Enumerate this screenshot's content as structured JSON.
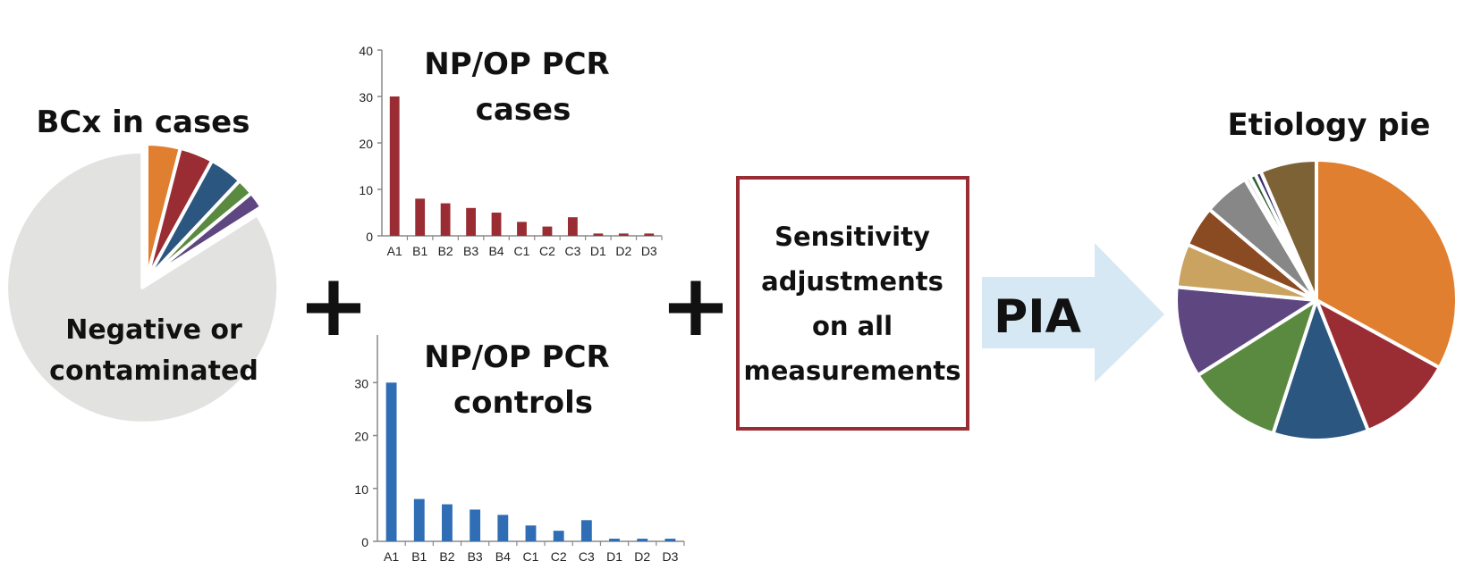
{
  "bcx_pie": {
    "title": "BCx in cases",
    "negative_label_line1": "Negative or",
    "negative_label_line2": "contaminated",
    "slices": [
      {
        "value": 4.0,
        "color": "#E07F2F"
      },
      {
        "value": 4.0,
        "color": "#9A2D34"
      },
      {
        "value": 4.0,
        "color": "#2A5680"
      },
      {
        "value": 2.0,
        "color": "#5A8A40"
      },
      {
        "value": 2.0,
        "color": "#5E4680"
      },
      {
        "value": 84.0,
        "color": "#E2E2E0",
        "exploded": true
      }
    ]
  },
  "plus_sign": "+",
  "cases_chart": {
    "title_line1": "NP/OP PCR",
    "title_line2": "cases",
    "color": "#9A2D34"
  },
  "controls_chart": {
    "title_line1": "NP/OP PCR",
    "title_line2": "controls",
    "color": "#2F6DB5"
  },
  "box": {
    "lines": [
      "Sensitivity",
      "adjustments",
      "on all",
      "measurements"
    ],
    "border_color": "#9A2D34"
  },
  "arrow": {
    "label": "PIA",
    "color": "#D6E8F4"
  },
  "etiology_pie": {
    "title": "Etiology pie",
    "slices": [
      {
        "value": 33.0,
        "color": "#E07F2F"
      },
      {
        "value": 11.0,
        "color": "#9A2D34"
      },
      {
        "value": 11.0,
        "color": "#2A5680"
      },
      {
        "value": 11.0,
        "color": "#5A8A40"
      },
      {
        "value": 10.5,
        "color": "#5E4680"
      },
      {
        "value": 5.0,
        "color": "#C9A35F"
      },
      {
        "value": 4.7,
        "color": "#8B4B22"
      },
      {
        "value": 5.3,
        "color": "#878787"
      },
      {
        "value": 0.6,
        "color": "#E6E6E6"
      },
      {
        "value": 0.7,
        "color": "#2E5F32"
      },
      {
        "value": 0.7,
        "color": "#3A2E6E"
      },
      {
        "value": 6.5,
        "color": "#7D6236"
      }
    ]
  },
  "chart_data": [
    {
      "type": "bar",
      "title": "NP/OP PCR cases",
      "categories": [
        "A1",
        "B1",
        "B2",
        "B3",
        "B4",
        "C1",
        "C2",
        "C3",
        "D1",
        "D2",
        "D3"
      ],
      "values": [
        30,
        8,
        7,
        6,
        5,
        3,
        2,
        4,
        0.5,
        0.5,
        0.5
      ],
      "yticks": [
        0,
        10,
        20,
        30,
        40
      ],
      "ylim": [
        0,
        40
      ],
      "grid": false,
      "legend": "none"
    },
    {
      "type": "bar",
      "title": "NP/OP PCR controls",
      "categories": [
        "A1",
        "B1",
        "B2",
        "B3",
        "B4",
        "C1",
        "C2",
        "C3",
        "D1",
        "D2",
        "D3"
      ],
      "values": [
        30,
        8,
        7,
        6,
        5,
        3,
        2,
        4,
        0.5,
        0.5,
        0.5
      ],
      "yticks": [
        0,
        10,
        20,
        30
      ],
      "ylim": [
        0,
        39
      ],
      "grid": false,
      "legend": "none"
    }
  ]
}
